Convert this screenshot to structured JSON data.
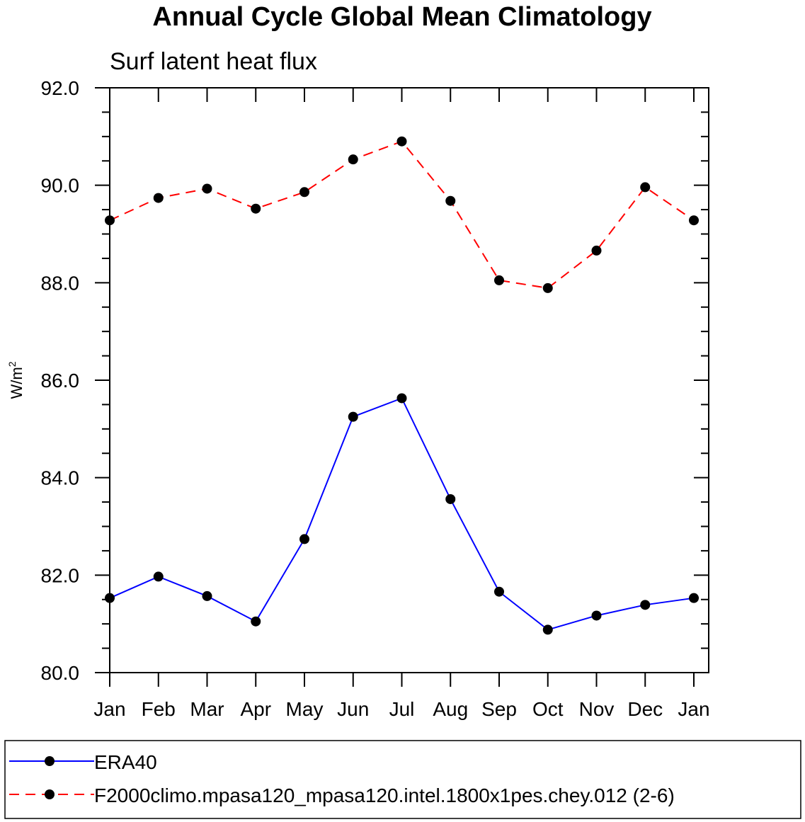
{
  "chart_data": {
    "type": "line",
    "title": "Annual Cycle Global Mean Climatology",
    "subtitle": "Surf latent heat flux",
    "ylabel": "W/m",
    "ylabel_superscript": "2",
    "xlabel": "",
    "categories": [
      "Jan",
      "Feb",
      "Mar",
      "Apr",
      "May",
      "Jun",
      "Jul",
      "Aug",
      "Sep",
      "Oct",
      "Nov",
      "Dec",
      "Jan"
    ],
    "ylim": [
      80.0,
      92.0
    ],
    "yticks": [
      "80.0",
      "82.0",
      "84.0",
      "86.0",
      "88.0",
      "90.0",
      "92.0"
    ],
    "ytick_values": [
      80,
      82,
      84,
      86,
      88,
      90,
      92
    ],
    "grid": false,
    "legend_position": "bottom",
    "series": [
      {
        "name": "ERA40",
        "color": "#0000ff",
        "style": "solid",
        "marker": "filled-circle",
        "values": [
          81.53,
          81.97,
          81.57,
          81.05,
          82.74,
          85.25,
          85.63,
          83.56,
          81.66,
          80.88,
          81.17,
          81.39,
          81.53
        ]
      },
      {
        "name": "F2000climo.mpasa120_mpasa120.intel.1800x1pes.chey.012 (2-6)",
        "color": "#ff0000",
        "style": "dashed",
        "marker": "filled-circle",
        "values": [
          89.28,
          89.74,
          89.93,
          89.52,
          89.86,
          90.53,
          90.9,
          89.68,
          88.05,
          87.89,
          88.66,
          89.96,
          89.28
        ]
      }
    ]
  }
}
